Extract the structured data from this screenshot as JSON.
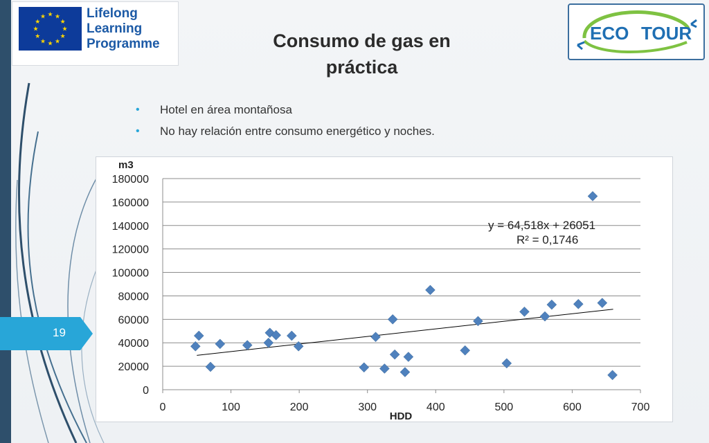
{
  "slide": {
    "title_line1": "Consumo de gas en",
    "title_line2": "práctica",
    "bullets": [
      "Hotel en área montañosa",
      "No hay relación entre consumo energético y noches."
    ],
    "page_number": "19"
  },
  "logos": {
    "llp_lines": [
      "Lifelong",
      "Learning",
      "Programme"
    ],
    "eco_text": "ECO TOUR",
    "eu_flag_color": "#0d3b9a",
    "eu_star_color": "#ffd500"
  },
  "colors": {
    "accent": "#28a6d8",
    "marker": "#4f81bd",
    "sidebar": "#2e4f6b"
  },
  "chart_data": {
    "type": "scatter",
    "title": "",
    "xlabel": "HDD",
    "ylabel": "m3",
    "xlim": [
      0,
      700
    ],
    "ylim": [
      0,
      180000
    ],
    "x_ticks": [
      0,
      100,
      200,
      300,
      400,
      500,
      600,
      700
    ],
    "y_ticks": [
      0,
      20000,
      40000,
      60000,
      80000,
      100000,
      120000,
      140000,
      160000,
      180000
    ],
    "grid": "horizontal",
    "legend": "none",
    "marker": "diamond",
    "trendline": {
      "slope": 64.518,
      "intercept": 26051,
      "x_range": [
        50,
        660
      ],
      "label_equation": "y = 64,518x + 26051",
      "label_r2": "R² = 0,1746"
    },
    "points": [
      {
        "x": 48,
        "y": 37000
      },
      {
        "x": 53,
        "y": 46000
      },
      {
        "x": 70,
        "y": 19500
      },
      {
        "x": 84,
        "y": 39000
      },
      {
        "x": 124,
        "y": 38000
      },
      {
        "x": 155,
        "y": 40000
      },
      {
        "x": 157,
        "y": 48500
      },
      {
        "x": 166,
        "y": 46500
      },
      {
        "x": 189,
        "y": 46000
      },
      {
        "x": 199,
        "y": 37000
      },
      {
        "x": 295,
        "y": 19000
      },
      {
        "x": 312,
        "y": 45000
      },
      {
        "x": 325,
        "y": 18000
      },
      {
        "x": 337,
        "y": 60000
      },
      {
        "x": 340,
        "y": 30000
      },
      {
        "x": 355,
        "y": 15000
      },
      {
        "x": 360,
        "y": 28000
      },
      {
        "x": 392,
        "y": 85000
      },
      {
        "x": 443,
        "y": 33500
      },
      {
        "x": 462,
        "y": 58500
      },
      {
        "x": 504,
        "y": 22500
      },
      {
        "x": 530,
        "y": 66500
      },
      {
        "x": 560,
        "y": 62500
      },
      {
        "x": 570,
        "y": 72500
      },
      {
        "x": 609,
        "y": 73000
      },
      {
        "x": 630,
        "y": 165000
      },
      {
        "x": 644,
        "y": 74000
      },
      {
        "x": 659,
        "y": 12500
      }
    ]
  }
}
